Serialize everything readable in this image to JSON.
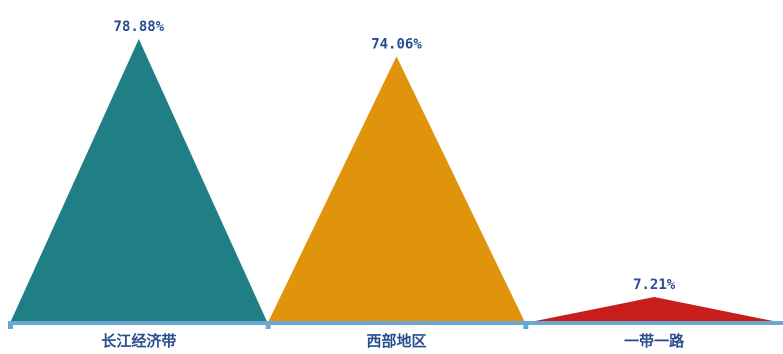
{
  "chart_data": {
    "type": "bar",
    "shape": "triangle",
    "categories": [
      "长江经济带",
      "西部地区",
      "一带一路"
    ],
    "values": [
      78.88,
      74.06,
      7.21
    ],
    "value_labels": [
      "78.88%",
      "74.06%",
      "7.21%"
    ],
    "unit": "%",
    "ylim": [
      0,
      85
    ],
    "grid": false,
    "legend": "none",
    "colors": [
      "#1f7f84",
      "#e0940c",
      "#c81d1d"
    ]
  },
  "style": {
    "axis_color": "#6aa8d4",
    "value_label_color": "#2a4d8f",
    "category_label_color": "#2a4d8f"
  }
}
